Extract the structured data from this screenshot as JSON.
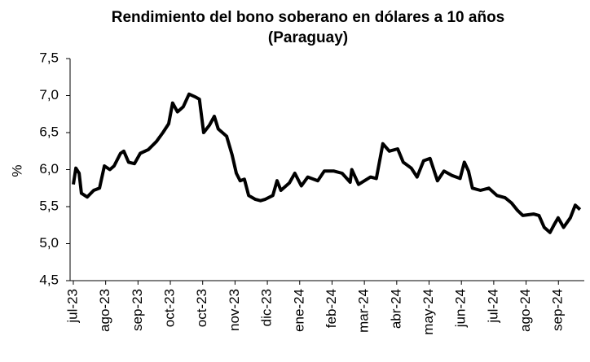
{
  "chart_data": {
    "type": "line",
    "title": "Rendimiento del bono soberano en dólares a 10 años",
    "subtitle": "(Paraguay)",
    "y_label": "%",
    "grid": false,
    "xlim": [
      -0.1,
      15.8
    ],
    "xticks": [
      {
        "value": 0,
        "label": "jul-23"
      },
      {
        "value": 1,
        "label": "ago-23"
      },
      {
        "value": 2,
        "label": "sep-23"
      },
      {
        "value": 3,
        "label": "oct-23"
      },
      {
        "value": 4,
        "label": "oct-23"
      },
      {
        "value": 5,
        "label": "nov-23"
      },
      {
        "value": 6,
        "label": "dic-23"
      },
      {
        "value": 7,
        "label": "ene-24"
      },
      {
        "value": 8,
        "label": "feb-24"
      },
      {
        "value": 9,
        "label": "mar-24"
      },
      {
        "value": 10,
        "label": "abr-24"
      },
      {
        "value": 11,
        "label": "may-24"
      },
      {
        "value": 12,
        "label": "jun-24"
      },
      {
        "value": 13,
        "label": "jul-24"
      },
      {
        "value": 14,
        "label": "ago-24"
      },
      {
        "value": 15,
        "label": "sep-24"
      }
    ],
    "ylim": [
      4.5,
      7.5
    ],
    "yticks": [
      {
        "value": 4.5,
        "label": "4,5"
      },
      {
        "value": 5.0,
        "label": "5,0"
      },
      {
        "value": 5.5,
        "label": "5,5"
      },
      {
        "value": 6.0,
        "label": "6,0"
      },
      {
        "value": 6.5,
        "label": "6,5"
      },
      {
        "value": 7.0,
        "label": "7,0"
      },
      {
        "value": 7.5,
        "label": "7,5"
      }
    ],
    "x": [
      0,
      0.08,
      0.18,
      0.25,
      0.43,
      0.63,
      0.81,
      0.96,
      1.13,
      1.26,
      1.46,
      1.56,
      1.71,
      1.89,
      2.07,
      2.32,
      2.57,
      2.77,
      2.95,
      3.07,
      3.22,
      3.4,
      3.58,
      3.78,
      3.9,
      4.03,
      4.21,
      4.36,
      4.48,
      4.74,
      4.91,
      5.04,
      5.16,
      5.29,
      5.42,
      5.62,
      5.79,
      5.94,
      6.17,
      6.3,
      6.42,
      6.68,
      6.85,
      7.05,
      7.25,
      7.56,
      7.76,
      8.06,
      8.31,
      8.56,
      8.61,
      8.82,
      9.19,
      9.37,
      9.57,
      9.77,
      10.03,
      10.2,
      10.45,
      10.63,
      10.83,
      11.03,
      11.26,
      11.46,
      11.71,
      11.96,
      12.09,
      12.22,
      12.34,
      12.59,
      12.85,
      13.1,
      13.35,
      13.55,
      13.73,
      13.9,
      14.23,
      14.4,
      14.56,
      14.74,
      14.86,
      14.99,
      15.16,
      15.37,
      15.52,
      15.67
    ],
    "series": [
      {
        "color": "#000000",
        "values": [
          5.8,
          6.02,
          5.95,
          5.68,
          5.63,
          5.72,
          5.75,
          6.05,
          6.0,
          6.05,
          6.22,
          6.25,
          6.1,
          6.08,
          6.22,
          6.27,
          6.38,
          6.5,
          6.62,
          6.9,
          6.78,
          6.85,
          7.02,
          6.98,
          6.95,
          6.5,
          6.6,
          6.72,
          6.55,
          6.45,
          6.2,
          5.95,
          5.85,
          5.87,
          5.65,
          5.6,
          5.58,
          5.6,
          5.65,
          5.85,
          5.72,
          5.82,
          5.95,
          5.78,
          5.9,
          5.85,
          5.98,
          5.98,
          5.95,
          5.83,
          6.0,
          5.8,
          5.9,
          5.88,
          6.35,
          6.25,
          6.28,
          6.1,
          6.02,
          5.9,
          6.12,
          6.15,
          5.85,
          5.98,
          5.92,
          5.88,
          6.1,
          5.98,
          5.75,
          5.72,
          5.75,
          5.65,
          5.62,
          5.55,
          5.45,
          5.38,
          5.4,
          5.38,
          5.22,
          5.15,
          5.25,
          5.35,
          5.22,
          5.35,
          5.52,
          5.46
        ]
      }
    ]
  }
}
